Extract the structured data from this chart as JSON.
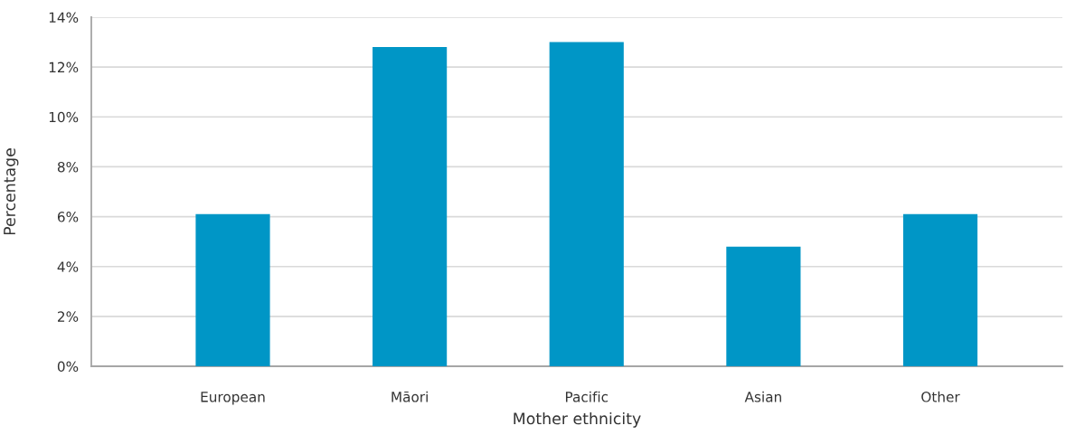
{
  "chart_data": {
    "type": "bar",
    "xlabel": "Mother ethnicity",
    "ylabel": "Percentage",
    "categories": [
      "European",
      "Māori",
      "Pacific",
      "Asian",
      "Other"
    ],
    "values": [
      6.1,
      12.8,
      13.0,
      4.8,
      6.1
    ],
    "color": "#0096c6",
    "ylim": [
      0,
      14
    ],
    "yticks": [
      {
        "value": 0,
        "label": "0%"
      },
      {
        "value": 2,
        "label": "2%"
      },
      {
        "value": 4,
        "label": "4%"
      },
      {
        "value": 6,
        "label": "6%"
      },
      {
        "value": 8,
        "label": "8%"
      },
      {
        "value": 10,
        "label": "10%"
      },
      {
        "value": 12,
        "label": "12%"
      },
      {
        "value": 14,
        "label": "14%"
      }
    ],
    "grid": "y",
    "legend": false
  }
}
